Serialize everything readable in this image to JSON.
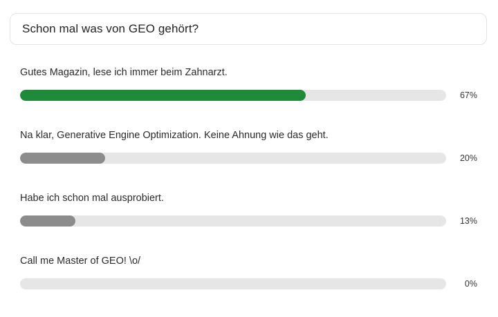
{
  "poll": {
    "question": "Schon mal was von GEO gehört?",
    "options": [
      {
        "label": "Gutes Magazin, lese ich immer beim Zahnarzt.",
        "percent_label": "67%",
        "fill_fraction": 0.67,
        "color": "#1e8a3a"
      },
      {
        "label": "Na klar, Generative Engine Optimization. Keine Ahnung wie das geht.",
        "percent_label": "20%",
        "fill_fraction": 0.2,
        "color": "#8c8c8c"
      },
      {
        "label": "Habe ich schon mal ausprobiert.",
        "percent_label": "13%",
        "fill_fraction": 0.13,
        "color": "#8c8c8c"
      },
      {
        "label": "Call me Master of GEO! \\o/",
        "percent_label": "0%",
        "fill_fraction": 0,
        "color": "#8c8c8c"
      }
    ],
    "track_color": "#e6e6e6"
  }
}
